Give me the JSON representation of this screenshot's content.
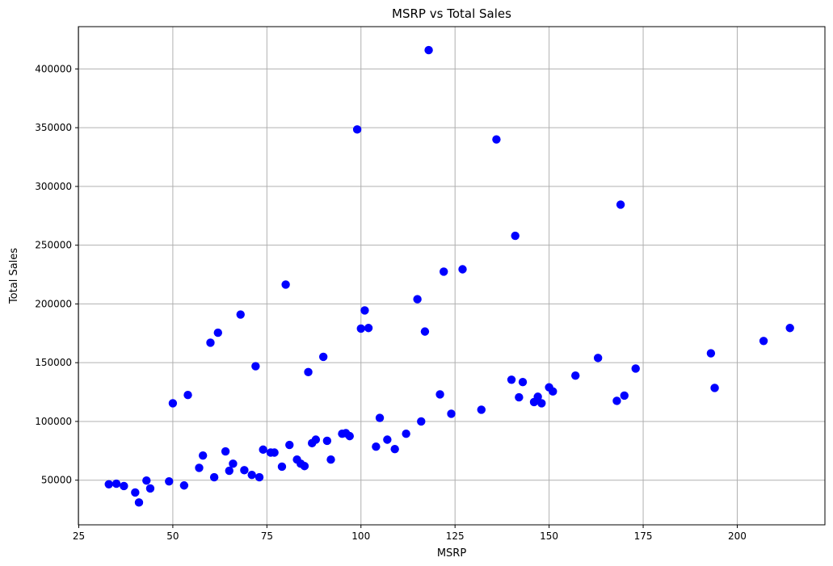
{
  "chart_data": {
    "type": "scatter",
    "title": "MSRP vs Total Sales",
    "xlabel": "MSRP",
    "ylabel": "Total Sales",
    "xlim": [
      24.9,
      223.3
    ],
    "ylim": [
      12000,
      436000
    ],
    "x_ticks": [
      25,
      50,
      75,
      100,
      125,
      150,
      175,
      200
    ],
    "x_tick_labels": [
      "25",
      "50",
      "75",
      "100",
      "125",
      "150",
      "175",
      "200"
    ],
    "y_ticks": [
      50000,
      100000,
      150000,
      200000,
      250000,
      300000,
      350000,
      400000
    ],
    "y_tick_labels": [
      "50000",
      "100000",
      "150000",
      "200000",
      "250000",
      "300000",
      "350000",
      "400000"
    ],
    "grid": true,
    "marker_color": "#0000ff",
    "points": [
      {
        "x": 33,
        "y": 46500
      },
      {
        "x": 35,
        "y": 47000
      },
      {
        "x": 37,
        "y": 45000
      },
      {
        "x": 40,
        "y": 39500
      },
      {
        "x": 41,
        "y": 31000
      },
      {
        "x": 43,
        "y": 49700
      },
      {
        "x": 44,
        "y": 43000
      },
      {
        "x": 49,
        "y": 49000
      },
      {
        "x": 50,
        "y": 115500
      },
      {
        "x": 53,
        "y": 45500
      },
      {
        "x": 54,
        "y": 122500
      },
      {
        "x": 57,
        "y": 60500
      },
      {
        "x": 58,
        "y": 71000
      },
      {
        "x": 60,
        "y": 167000
      },
      {
        "x": 61,
        "y": 52500
      },
      {
        "x": 62,
        "y": 175500
      },
      {
        "x": 64,
        "y": 74500
      },
      {
        "x": 65,
        "y": 58000
      },
      {
        "x": 66,
        "y": 64000
      },
      {
        "x": 68,
        "y": 191000
      },
      {
        "x": 69,
        "y": 58500
      },
      {
        "x": 71,
        "y": 54500
      },
      {
        "x": 72,
        "y": 147000
      },
      {
        "x": 73,
        "y": 52500
      },
      {
        "x": 74,
        "y": 76000
      },
      {
        "x": 76,
        "y": 73500
      },
      {
        "x": 77,
        "y": 73500
      },
      {
        "x": 79,
        "y": 61500
      },
      {
        "x": 80,
        "y": 216500
      },
      {
        "x": 81,
        "y": 80000
      },
      {
        "x": 83,
        "y": 67500
      },
      {
        "x": 84,
        "y": 64000
      },
      {
        "x": 85,
        "y": 62000
      },
      {
        "x": 86,
        "y": 142000
      },
      {
        "x": 87,
        "y": 81500
      },
      {
        "x": 88,
        "y": 84500
      },
      {
        "x": 90,
        "y": 155000
      },
      {
        "x": 91,
        "y": 83500
      },
      {
        "x": 92,
        "y": 67500
      },
      {
        "x": 95,
        "y": 89500
      },
      {
        "x": 96,
        "y": 90000
      },
      {
        "x": 97,
        "y": 87500
      },
      {
        "x": 99,
        "y": 348500
      },
      {
        "x": 100,
        "y": 179000
      },
      {
        "x": 101,
        "y": 194500
      },
      {
        "x": 102,
        "y": 179500
      },
      {
        "x": 104,
        "y": 78500
      },
      {
        "x": 105,
        "y": 103000
      },
      {
        "x": 107,
        "y": 84500
      },
      {
        "x": 109,
        "y": 76500
      },
      {
        "x": 112,
        "y": 89500
      },
      {
        "x": 115,
        "y": 204000
      },
      {
        "x": 116,
        "y": 100000
      },
      {
        "x": 117,
        "y": 176500
      },
      {
        "x": 118,
        "y": 416000
      },
      {
        "x": 121,
        "y": 123000
      },
      {
        "x": 122,
        "y": 227500
      },
      {
        "x": 124,
        "y": 106500
      },
      {
        "x": 127,
        "y": 229500
      },
      {
        "x": 132,
        "y": 110000
      },
      {
        "x": 136,
        "y": 340000
      },
      {
        "x": 140,
        "y": 135500
      },
      {
        "x": 141,
        "y": 258000
      },
      {
        "x": 142,
        "y": 120500
      },
      {
        "x": 143,
        "y": 133500
      },
      {
        "x": 146,
        "y": 116500
      },
      {
        "x": 147,
        "y": 121000
      },
      {
        "x": 148,
        "y": 115500
      },
      {
        "x": 150,
        "y": 129000
      },
      {
        "x": 151,
        "y": 125500
      },
      {
        "x": 157,
        "y": 139000
      },
      {
        "x": 163,
        "y": 154000
      },
      {
        "x": 168,
        "y": 117500
      },
      {
        "x": 169,
        "y": 284500
      },
      {
        "x": 170,
        "y": 122000
      },
      {
        "x": 173,
        "y": 145000
      },
      {
        "x": 193,
        "y": 158000
      },
      {
        "x": 194,
        "y": 128500
      },
      {
        "x": 207,
        "y": 168500
      },
      {
        "x": 214,
        "y": 179500
      }
    ]
  }
}
